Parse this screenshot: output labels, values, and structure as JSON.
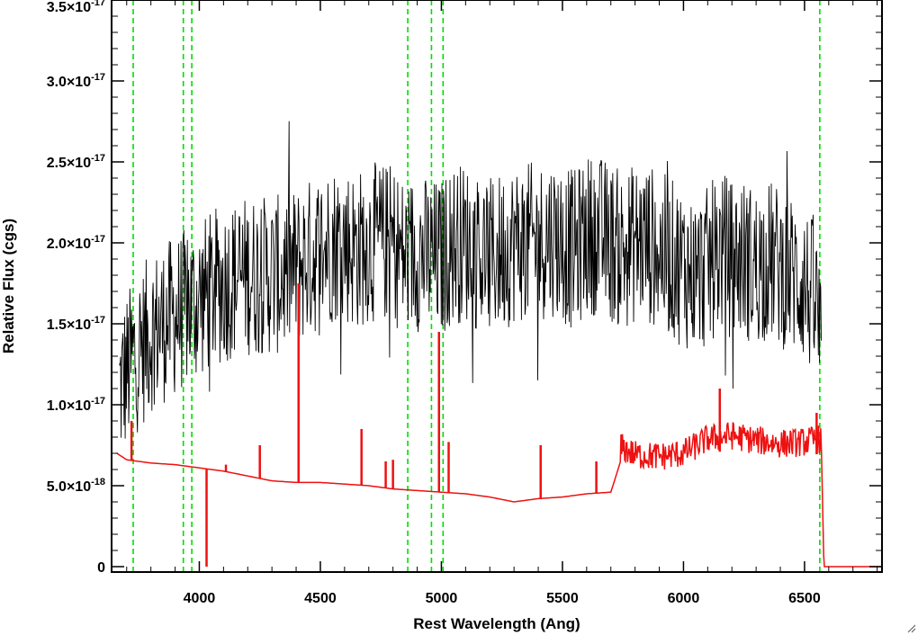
{
  "chart_data": {
    "type": "line",
    "title": "",
    "xlabel": "Rest Wavelength (Ang)",
    "ylabel": "Relative Flux (cgs)",
    "xlim": [
      3660,
      6820
    ],
    "ylim": [
      0,
      3.5e-17
    ],
    "x_ticks": [
      4000,
      4500,
      5000,
      5500,
      6000,
      6500
    ],
    "y_ticks": [
      {
        "mantissa": "0",
        "exp": "",
        "value": 0
      },
      {
        "mantissa": "5.0×10",
        "exp": "-18",
        "value": 5e-18
      },
      {
        "mantissa": "1.0×10",
        "exp": "-17",
        "value": 1e-17
      },
      {
        "mantissa": "1.5×10",
        "exp": "-17",
        "value": 1.5e-17
      },
      {
        "mantissa": "2.0×10",
        "exp": "-17",
        "value": 2e-17
      },
      {
        "mantissa": "2.5×10",
        "exp": "-17",
        "value": 2.5e-17
      },
      {
        "mantissa": "3.0×10",
        "exp": "-17",
        "value": 3e-17
      },
      {
        "mantissa": "3.5×10",
        "exp": "-17",
        "value": 3.5e-17
      }
    ],
    "grid": false,
    "colors": {
      "spectrum": "#000000",
      "error": "#ee1111",
      "lines": "#00dd00"
    },
    "series": [
      {
        "role": "spectrum",
        "color": "#000000",
        "x": [
          3670,
          3700,
          3730,
          3760,
          3800,
          3850,
          3900,
          3950,
          4000,
          4050,
          4100,
          4150,
          4200,
          4250,
          4300,
          4350,
          4400,
          4450,
          4500,
          4550,
          4600,
          4650,
          4700,
          4750,
          4800,
          4850,
          4900,
          4950,
          5000,
          5050,
          5100,
          5150,
          5200,
          5250,
          5300,
          5350,
          5400,
          5450,
          5500,
          5550,
          5600,
          5650,
          5700,
          5750,
          5800,
          5850,
          5900,
          5950,
          6000,
          6050,
          6100,
          6150,
          6200,
          6250,
          6300,
          6350,
          6400,
          6450,
          6500,
          6550,
          6570
        ],
        "y": [
          1.1e-17,
          1.2e-17,
          1.3e-17,
          1.35e-17,
          1.45e-17,
          1.5e-17,
          1.55e-17,
          1.6e-17,
          1.65e-17,
          1.7e-17,
          1.75e-17,
          1.78e-17,
          1.8e-17,
          1.8e-17,
          1.8e-17,
          1.8e-17,
          1.85e-17,
          1.9e-17,
          1.95e-17,
          2e-17,
          2e-17,
          1.95e-17,
          2e-17,
          2e-17,
          2e-17,
          1.9e-17,
          1.95e-17,
          1.9e-17,
          1.9e-17,
          2e-17,
          2e-17,
          1.95e-17,
          1.9e-17,
          1.95e-17,
          2e-17,
          2e-17,
          2e-17,
          2.05e-17,
          2e-17,
          1.95e-17,
          2.05e-17,
          2.05e-17,
          2e-17,
          1.95e-17,
          2e-17,
          2e-17,
          1.95e-17,
          1.9e-17,
          1.85e-17,
          1.8e-17,
          1.85e-17,
          1.95e-17,
          1.9e-17,
          1.9e-17,
          1.85e-17,
          1.9e-17,
          1.85e-17,
          1.8e-17,
          1.75e-17,
          1.6e-17,
          1.3e-17
        ],
        "scatter_amplitude": 5e-18
      },
      {
        "role": "error",
        "color": "#ee1111",
        "x": [
          3660,
          3700,
          3800,
          3900,
          4000,
          4100,
          4200,
          4300,
          4400,
          4500,
          4600,
          4700,
          4800,
          4900,
          5000,
          5100,
          5200,
          5300,
          5400,
          5500,
          5600,
          5700,
          5740,
          5800,
          5900,
          6000,
          6100,
          6200,
          6300,
          6400,
          6500,
          6570,
          6580,
          6820
        ],
        "y": [
          7e-18,
          6.6e-18,
          6.4e-18,
          6.3e-18,
          6.1e-18,
          5.9e-18,
          5.6e-18,
          5.3e-18,
          5.2e-18,
          5.2e-18,
          5.1e-18,
          5e-18,
          4.8e-18,
          4.7e-18,
          4.6e-18,
          4.5e-18,
          4.3e-18,
          4e-18,
          4.2e-18,
          4.3e-18,
          4.5e-18,
          4.6e-18,
          6.5e-18,
          6e-18,
          5.9e-18,
          6.1e-18,
          7e-18,
          7.2e-18,
          6.9e-18,
          6.7e-18,
          6.8e-18,
          7e-18,
          0,
          0
        ],
        "spikes": [
          {
            "x": 3720,
            "y": 9e-18
          },
          {
            "x": 4030,
            "y": 0
          },
          {
            "x": 4110,
            "y": 6.3e-18
          },
          {
            "x": 4250,
            "y": 7.5e-18
          },
          {
            "x": 4410,
            "y": 1.75e-17
          },
          {
            "x": 4670,
            "y": 8.5e-18
          },
          {
            "x": 4770,
            "y": 6.5e-18
          },
          {
            "x": 4800,
            "y": 6.6e-18
          },
          {
            "x": 4990,
            "y": 1.45e-17
          },
          {
            "x": 5030,
            "y": 7.7e-18
          },
          {
            "x": 5410,
            "y": 7.5e-18
          },
          {
            "x": 5640,
            "y": 6.5e-18
          },
          {
            "x": 6150,
            "y": 1.1e-17
          },
          {
            "x": 6550,
            "y": 9.5e-18
          }
        ]
      }
    ],
    "vertical_lines": [
      {
        "x": 3727,
        "style": "dashed",
        "color": "#00dd00"
      },
      {
        "x": 3934,
        "style": "dashed",
        "color": "#00dd00"
      },
      {
        "x": 3969,
        "style": "dashed",
        "color": "#00dd00"
      },
      {
        "x": 4861,
        "style": "dashed",
        "color": "#00dd00"
      },
      {
        "x": 4959,
        "style": "dashed",
        "color": "#00dd00"
      },
      {
        "x": 5007,
        "style": "dashed",
        "color": "#00dd00"
      },
      {
        "x": 6563,
        "style": "dashed",
        "color": "#00dd00"
      }
    ]
  }
}
